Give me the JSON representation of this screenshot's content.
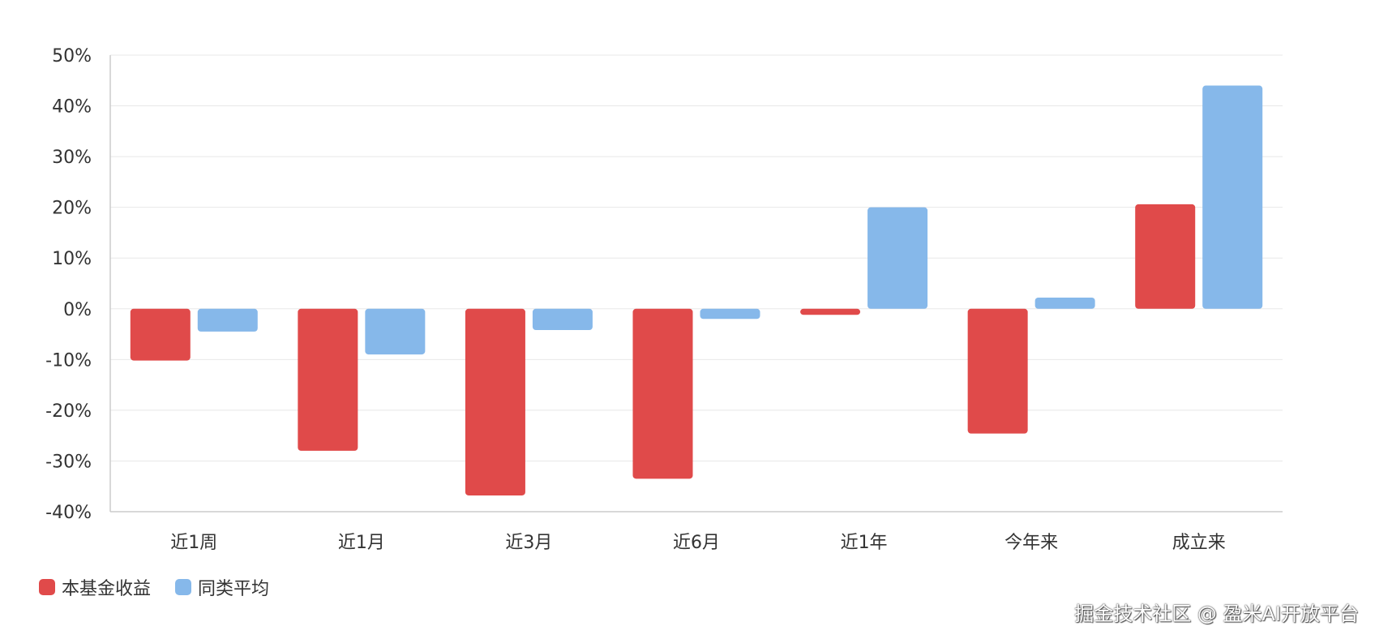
{
  "chart_data": {
    "type": "bar",
    "categories": [
      "近1周",
      "近1月",
      "近3月",
      "近6月",
      "近1年",
      "今年来",
      "成立来"
    ],
    "series": [
      {
        "name": "本基金收益",
        "color": "#e04a4a",
        "values": [
          -10.2,
          -28.0,
          -36.8,
          -33.5,
          -1.2,
          -24.6,
          20.6
        ]
      },
      {
        "name": "同类平均",
        "color": "#86b8ea",
        "values": [
          -4.5,
          -9.0,
          -4.2,
          -2.0,
          20.0,
          2.2,
          44.0
        ]
      }
    ],
    "title": "",
    "xlabel": "",
    "ylabel": "",
    "ylim": [
      -40,
      50
    ],
    "yticks": [
      "50%",
      "40%",
      "30%",
      "20%",
      "10%",
      "0%",
      "-10%",
      "-20%",
      "-30%",
      "-40%"
    ],
    "ytick_values": [
      50,
      40,
      30,
      20,
      10,
      0,
      -10,
      -20,
      -30,
      -40
    ],
    "grid": true,
    "legend_placement": "bottom-left"
  },
  "watermark": "掘金技术社区 @ 盈米AI开放平台"
}
